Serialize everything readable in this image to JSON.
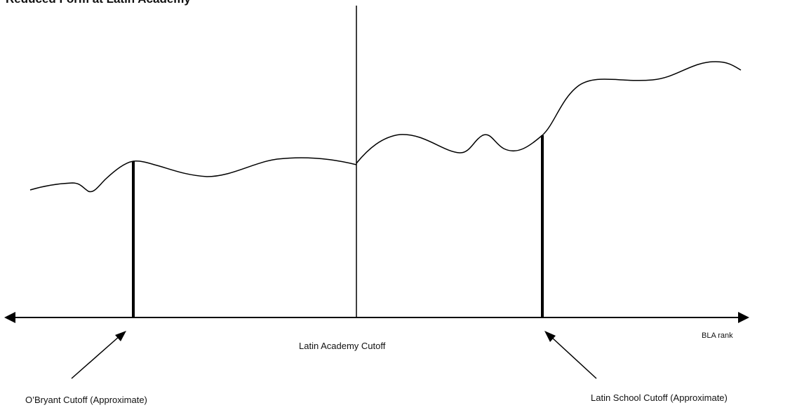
{
  "title": "Reduced Form at Latin Academy",
  "axis": {
    "label": "BLA rank"
  },
  "cutoffs": {
    "latin_academy": "Latin Academy Cutoff",
    "obryant": "O’Bryant Cutoff (Approximate)",
    "latin_school": "Latin School  Cutoff (Approximate)"
  },
  "colors": {
    "ink": "#000000",
    "background": "#ffffff"
  }
}
